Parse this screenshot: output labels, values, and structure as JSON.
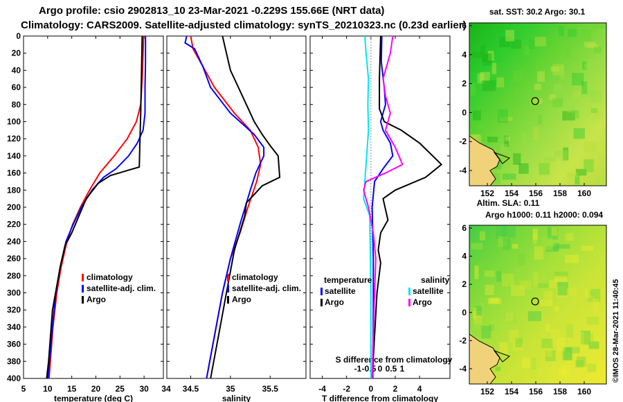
{
  "header": {
    "line1": "Argo profile: csio 2902813_10 23-Mar-2021 -0.229S 155.66E (NRT data)",
    "line2": "Climatology: CARS2009. Satellite-adjusted climatology: synTS_20210323.nc (0.23d earlier)"
  },
  "colors": {
    "climatology": "#ff0000",
    "satellite": "#0000ff",
    "argo": "#000000",
    "cyan": "#00e5ee",
    "magenta": "#ff00ff"
  },
  "chart_data": [
    {
      "type": "line",
      "id": "temperature",
      "xlabel": "temperature (deg C)",
      "ylabel": "",
      "xlim": [
        5,
        34
      ],
      "ylim": [
        400,
        0
      ],
      "xticks": [
        5,
        10,
        15,
        20,
        25,
        30,
        34
      ],
      "yticks": [
        0,
        20,
        40,
        60,
        80,
        100,
        120,
        140,
        160,
        180,
        200,
        220,
        240,
        260,
        280,
        300,
        320,
        340,
        360,
        380,
        400
      ],
      "legend": {
        "position": "lower-right",
        "entries": [
          "climatology",
          "satellite-adj. clim.",
          "Argo"
        ]
      },
      "series": [
        {
          "name": "climatology",
          "color": "#ff0000",
          "points": [
            [
              29.9,
              0
            ],
            [
              29.8,
              20
            ],
            [
              29.6,
              50
            ],
            [
              29.3,
              80
            ],
            [
              28.4,
              100
            ],
            [
              26.5,
              120
            ],
            [
              23.8,
              140
            ],
            [
              20.8,
              160
            ],
            [
              18.7,
              180
            ],
            [
              16.8,
              200
            ],
            [
              15.2,
              220
            ],
            [
              14.0,
              240
            ],
            [
              12.8,
              270
            ],
            [
              11.9,
              300
            ],
            [
              11.1,
              340
            ],
            [
              10.3,
              400
            ]
          ]
        },
        {
          "name": "satellite-adj. clim.",
          "color": "#0000ff",
          "points": [
            [
              30.3,
              0
            ],
            [
              30.3,
              30
            ],
            [
              30.2,
              60
            ],
            [
              30.2,
              90
            ],
            [
              29.8,
              110
            ],
            [
              28.6,
              125
            ],
            [
              26.8,
              140
            ],
            [
              24.2,
              155
            ],
            [
              21.6,
              165
            ],
            [
              19.2,
              180
            ],
            [
              17.0,
              200
            ],
            [
              15.3,
              220
            ],
            [
              13.8,
              240
            ],
            [
              12.6,
              270
            ],
            [
              11.7,
              300
            ],
            [
              11.0,
              340
            ],
            [
              10.1,
              400
            ]
          ]
        },
        {
          "name": "Argo",
          "color": "#000000",
          "points": [
            [
              29.6,
              0
            ],
            [
              29.5,
              30
            ],
            [
              29.4,
              60
            ],
            [
              29.3,
              90
            ],
            [
              29.2,
              110
            ],
            [
              29.1,
              130
            ],
            [
              29.0,
              153
            ],
            [
              26.0,
              158
            ],
            [
              23.0,
              163
            ],
            [
              20.5,
              172
            ],
            [
              18.0,
              190
            ],
            [
              16.5,
              210
            ],
            [
              15.0,
              230
            ],
            [
              13.6,
              245
            ],
            [
              12.6,
              270
            ],
            [
              11.8,
              295
            ],
            [
              11.0,
              320
            ],
            [
              10.6,
              350
            ],
            [
              10.2,
              380
            ],
            [
              9.8,
              400
            ]
          ]
        }
      ]
    },
    {
      "type": "line",
      "id": "salinity",
      "xlabel": "salinity",
      "ylabel": "",
      "xlim": [
        34.2,
        35.95
      ],
      "ylim": [
        400,
        0
      ],
      "xticks": [
        34.5,
        35,
        35.5
      ],
      "legend": {
        "position": "lower-right",
        "entries": [
          "climatology",
          "satellite-adj. clim.",
          "Argo"
        ]
      },
      "series": [
        {
          "name": "climatology",
          "color": "#ff0000",
          "points": [
            [
              34.5,
              0
            ],
            [
              34.53,
              15
            ],
            [
              34.65,
              35
            ],
            [
              34.8,
              60
            ],
            [
              35.05,
              90
            ],
            [
              35.25,
              110
            ],
            [
              35.35,
              130
            ],
            [
              35.38,
              150
            ],
            [
              35.33,
              170
            ],
            [
              35.22,
              200
            ],
            [
              35.12,
              230
            ],
            [
              35.0,
              260
            ],
            [
              34.9,
              300
            ],
            [
              34.8,
              350
            ],
            [
              34.7,
              400
            ]
          ]
        },
        {
          "name": "satellite-adj. clim.",
          "color": "#0000ff",
          "points": [
            [
              34.45,
              0
            ],
            [
              34.43,
              8
            ],
            [
              34.55,
              15
            ],
            [
              34.65,
              35
            ],
            [
              34.75,
              60
            ],
            [
              35.0,
              90
            ],
            [
              35.3,
              115
            ],
            [
              35.42,
              130
            ],
            [
              35.42,
              140
            ],
            [
              35.32,
              160
            ],
            [
              35.25,
              180
            ],
            [
              35.12,
              220
            ],
            [
              35.0,
              260
            ],
            [
              34.9,
              300
            ],
            [
              34.8,
              350
            ],
            [
              34.7,
              400
            ]
          ]
        },
        {
          "name": "Argo",
          "color": "#000000",
          "points": [
            [
              34.9,
              0
            ],
            [
              34.95,
              20
            ],
            [
              35.0,
              40
            ],
            [
              35.1,
              60
            ],
            [
              35.2,
              80
            ],
            [
              35.3,
              100
            ],
            [
              35.4,
              115
            ],
            [
              35.5,
              128
            ],
            [
              35.6,
              140
            ],
            [
              35.62,
              165
            ],
            [
              35.4,
              175
            ],
            [
              35.2,
              195
            ],
            [
              35.18,
              210
            ],
            [
              35.05,
              250
            ],
            [
              34.95,
              300
            ],
            [
              34.85,
              350
            ],
            [
              34.75,
              400
            ]
          ]
        }
      ]
    },
    {
      "type": "line",
      "id": "difference",
      "xlabel": "T difference from climatology",
      "xlabel2": "S difference from climatology",
      "xlim": [
        -5,
        6.5
      ],
      "ylim": [
        400,
        0
      ],
      "xticks": [
        -4,
        -2,
        0,
        2,
        4
      ],
      "xticks2": [
        -1,
        -0.5,
        0,
        0.5,
        1
      ],
      "legend_left": {
        "title": "temperature",
        "entries": [
          "satellite",
          "Argo"
        ]
      },
      "legend_right": {
        "title": "salinity",
        "entries": [
          "satellite",
          "Argo"
        ]
      },
      "series": [
        {
          "name": "T satellite",
          "color": "#0000ff",
          "points": [
            [
              0.9,
              0
            ],
            [
              0.85,
              30
            ],
            [
              1.1,
              60
            ],
            [
              1.2,
              80
            ],
            [
              0.8,
              100
            ],
            [
              1.0,
              110
            ],
            [
              1.6,
              125
            ],
            [
              1.8,
              140
            ],
            [
              1.0,
              155
            ],
            [
              0.3,
              170
            ],
            [
              0.1,
              200
            ],
            [
              0.2,
              260
            ],
            [
              0.2,
              320
            ],
            [
              0.15,
              400
            ]
          ]
        },
        {
          "name": "T Argo",
          "color": "#000000",
          "points": [
            [
              0.8,
              0
            ],
            [
              0.7,
              50
            ],
            [
              0.7,
              85
            ],
            [
              1.1,
              100
            ],
            [
              2.5,
              110
            ],
            [
              4.0,
              125
            ],
            [
              5.8,
              150
            ],
            [
              4.5,
              165
            ],
            [
              2.0,
              180
            ],
            [
              1.0,
              190
            ],
            [
              1.4,
              215
            ],
            [
              0.8,
              230
            ],
            [
              0.6,
              250
            ],
            [
              0.8,
              265
            ],
            [
              0.5,
              300
            ],
            [
              0.3,
              350
            ],
            [
              0.1,
              400
            ]
          ]
        },
        {
          "name": "S satellite",
          "color": "#00e5ee",
          "points": [
            [
              -0.5,
              0
            ],
            [
              -0.4,
              20
            ],
            [
              -0.2,
              50
            ],
            [
              -0.25,
              80
            ],
            [
              -0.2,
              110
            ],
            [
              -0.4,
              150
            ],
            [
              -0.6,
              190
            ],
            [
              -0.1,
              210
            ],
            [
              -0.05,
              250
            ],
            [
              0.0,
              300
            ],
            [
              0.0,
              400
            ]
          ]
        },
        {
          "name": "S Argo",
          "color": "#ff00ff",
          "points": [
            [
              1.8,
              0
            ],
            [
              1.6,
              20
            ],
            [
              1.0,
              50
            ],
            [
              1.2,
              70
            ],
            [
              1.6,
              90
            ],
            [
              1.2,
              110
            ],
            [
              2.0,
              130
            ],
            [
              2.6,
              150
            ],
            [
              1.2,
              160
            ],
            [
              -0.4,
              170
            ],
            [
              -0.6,
              180
            ],
            [
              -0.2,
              200
            ],
            [
              0.2,
              230
            ],
            [
              0.4,
              260
            ],
            [
              0.3,
              300
            ],
            [
              0.2,
              350
            ],
            [
              0.1,
              400
            ]
          ]
        }
      ]
    }
  ],
  "maps": [
    {
      "id": "sst",
      "title": "sat. SST: 30.2  Argo: 30.1",
      "xticks": [
        "152",
        "154",
        "156",
        "158",
        "160"
      ],
      "yticks": [
        "6",
        "4",
        "2",
        "0",
        "-2",
        "-4"
      ]
    },
    {
      "id": "sla",
      "title1": "Altim. SLA: 0.11",
      "title2": "Argo h1000: 0.11  h2000: 0.094",
      "xticks": [
        "152",
        "154",
        "156",
        "158",
        "160"
      ],
      "yticks": [
        "6",
        "4",
        "2",
        "0",
        "-2",
        "-4"
      ]
    }
  ],
  "footer": {
    "credit": "©IMOS 28-Mar-2021 11:40:45"
  }
}
